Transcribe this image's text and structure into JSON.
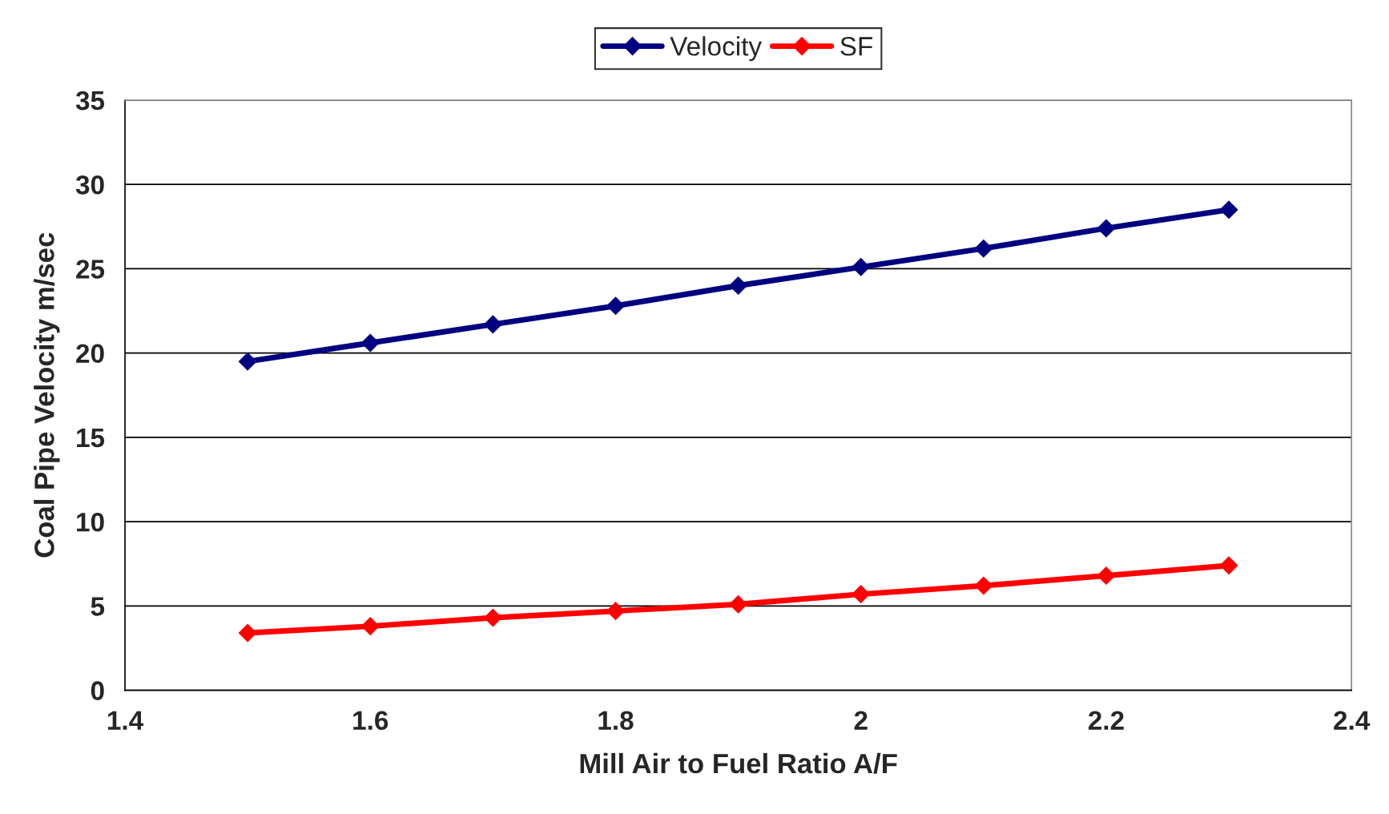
{
  "chart_data": {
    "type": "line",
    "xlabel": "Mill Air to Fuel Ratio A/F",
    "ylabel": "Coal Pipe Velocity m/sec",
    "x": [
      1.5,
      1.6,
      1.7,
      1.8,
      1.9,
      2.0,
      2.1,
      2.2,
      2.3
    ],
    "series": [
      {
        "name": "Velocity",
        "color": "#000080",
        "values": [
          19.5,
          20.6,
          21.7,
          22.8,
          24.0,
          25.1,
          26.2,
          27.4,
          28.5
        ]
      },
      {
        "name": "SF",
        "color": "#ff0000",
        "values": [
          3.4,
          3.8,
          4.3,
          4.7,
          5.1,
          5.7,
          6.2,
          6.8,
          7.4
        ]
      }
    ],
    "xlim": [
      1.4,
      2.4
    ],
    "xticks": [
      1.4,
      1.6,
      1.8,
      2,
      2.2,
      2.4
    ],
    "ylim": [
      0,
      35
    ],
    "yticks": [
      0,
      5,
      10,
      15,
      20,
      25,
      30,
      35
    ],
    "grid": "y",
    "legend": "top",
    "marker": "diamond",
    "line_style": "solid"
  }
}
